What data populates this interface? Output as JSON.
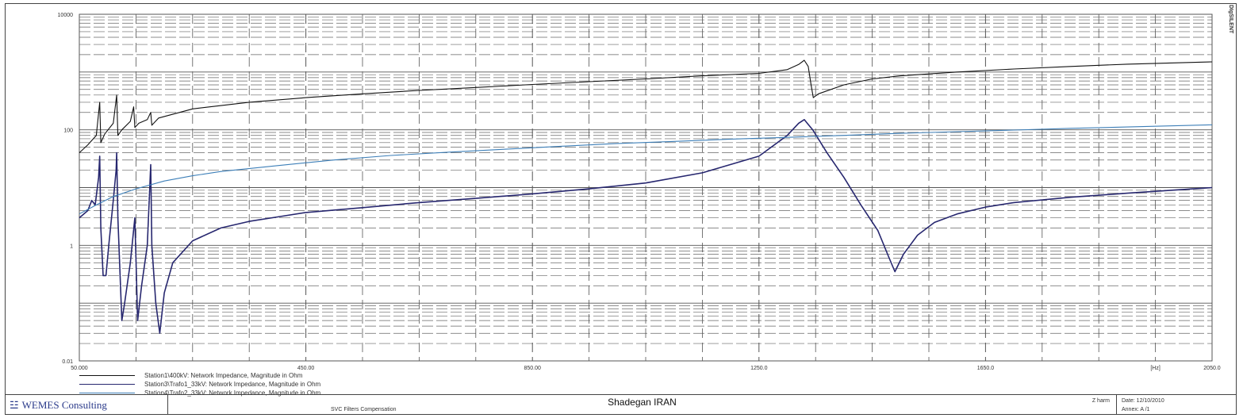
{
  "chart_data": {
    "type": "line",
    "title": "",
    "xlabel": "[Hz]",
    "ylabel": "",
    "xlim": [
      50,
      2050
    ],
    "ylim": [
      0.01,
      10000
    ],
    "y_scale": "log",
    "grid": true,
    "x_tick_labels": [
      {
        "value": 50,
        "label": "50.000"
      },
      {
        "value": 450,
        "label": "450.00"
      },
      {
        "value": 850,
        "label": "850.00"
      },
      {
        "value": 1250,
        "label": "1250.0"
      },
      {
        "value": 1650,
        "label": "1650.0"
      },
      {
        "value": 2050,
        "label": "2050.0"
      }
    ],
    "y_tick_labels": [
      {
        "value": 10000,
        "label": "10000"
      },
      {
        "value": 100,
        "label": "100"
      },
      {
        "value": 1,
        "label": "1"
      },
      {
        "value": 0.01,
        "label": "0.01"
      }
    ],
    "series": [
      {
        "name": "Station1\\400kV: Network Impedance, Magnitude in Ohm",
        "color": "#111111",
        "points": [
          [
            50,
            40
          ],
          [
            65,
            55
          ],
          [
            80,
            80
          ],
          [
            86,
            300
          ],
          [
            88,
            60
          ],
          [
            95,
            85
          ],
          [
            110,
            130
          ],
          [
            116,
            400
          ],
          [
            118,
            80
          ],
          [
            125,
            100
          ],
          [
            140,
            140
          ],
          [
            146,
            250
          ],
          [
            148,
            110
          ],
          [
            155,
            130
          ],
          [
            170,
            150
          ],
          [
            176,
            200
          ],
          [
            178,
            120
          ],
          [
            190,
            160
          ],
          [
            250,
            230
          ],
          [
            350,
            300
          ],
          [
            450,
            360
          ],
          [
            550,
            420
          ],
          [
            650,
            480
          ],
          [
            750,
            540
          ],
          [
            850,
            610
          ],
          [
            950,
            680
          ],
          [
            1050,
            760
          ],
          [
            1150,
            860
          ],
          [
            1250,
            950
          ],
          [
            1300,
            1100
          ],
          [
            1320,
            1350
          ],
          [
            1330,
            1600
          ],
          [
            1337,
            1250
          ],
          [
            1342,
            600
          ],
          [
            1346,
            360
          ],
          [
            1355,
            420
          ],
          [
            1400,
            600
          ],
          [
            1450,
            760
          ],
          [
            1500,
            860
          ],
          [
            1600,
            1000
          ],
          [
            1700,
            1130
          ],
          [
            1800,
            1250
          ],
          [
            1900,
            1370
          ],
          [
            2050,
            1500
          ]
        ]
      },
      {
        "name": "Station3\\Trafo1_33kV: Network Impedance, Magnitude in Ohm",
        "color": "#27276f",
        "points": [
          [
            50,
            3
          ],
          [
            65,
            4
          ],
          [
            72,
            6
          ],
          [
            78,
            5
          ],
          [
            84,
            15
          ],
          [
            86,
            35
          ],
          [
            88,
            2
          ],
          [
            92,
            0.3
          ],
          [
            97,
            0.3
          ],
          [
            102,
            1
          ],
          [
            110,
            6
          ],
          [
            115,
            20
          ],
          [
            116,
            40
          ],
          [
            118,
            3
          ],
          [
            125,
            0.05
          ],
          [
            130,
            0.1
          ],
          [
            140,
            0.5
          ],
          [
            148,
            3
          ],
          [
            153,
            0.05
          ],
          [
            160,
            0.2
          ],
          [
            170,
            1
          ],
          [
            176,
            25
          ],
          [
            178,
            1
          ],
          [
            185,
            0.1
          ],
          [
            192,
            0.03
          ],
          [
            200,
            0.15
          ],
          [
            215,
            0.5
          ],
          [
            250,
            1.2
          ],
          [
            300,
            2
          ],
          [
            350,
            2.6
          ],
          [
            400,
            3.1
          ],
          [
            450,
            3.7
          ],
          [
            550,
            4.5
          ],
          [
            650,
            5.5
          ],
          [
            750,
            6.5
          ],
          [
            850,
            7.8
          ],
          [
            950,
            9.5
          ],
          [
            1050,
            12
          ],
          [
            1150,
            18
          ],
          [
            1250,
            35
          ],
          [
            1300,
            80
          ],
          [
            1320,
            130
          ],
          [
            1330,
            150
          ],
          [
            1345,
            100
          ],
          [
            1370,
            40
          ],
          [
            1400,
            15
          ],
          [
            1430,
            5
          ],
          [
            1460,
            1.8
          ],
          [
            1480,
            0.6
          ],
          [
            1490,
            0.35
          ],
          [
            1505,
            0.7
          ],
          [
            1530,
            1.5
          ],
          [
            1560,
            2.5
          ],
          [
            1600,
            3.5
          ],
          [
            1650,
            4.6
          ],
          [
            1700,
            5.5
          ],
          [
            1800,
            6.8
          ],
          [
            1900,
            8
          ],
          [
            2050,
            10
          ]
        ]
      },
      {
        "name": "Station4\\Trafo2_33kV: Network Impedance, Magnitude in Ohm",
        "color": "#3d7fb8",
        "points": [
          [
            50,
            3.5
          ],
          [
            80,
            5
          ],
          [
            110,
            7
          ],
          [
            150,
            9.5
          ],
          [
            200,
            13
          ],
          [
            250,
            16
          ],
          [
            300,
            19
          ],
          [
            400,
            24
          ],
          [
            500,
            30
          ],
          [
            600,
            36
          ],
          [
            700,
            41
          ],
          [
            800,
            46
          ],
          [
            900,
            52
          ],
          [
            1000,
            58
          ],
          [
            1100,
            63
          ],
          [
            1200,
            69
          ],
          [
            1300,
            74
          ],
          [
            1400,
            80
          ],
          [
            1500,
            87
          ],
          [
            1600,
            93
          ],
          [
            1700,
            99
          ],
          [
            1800,
            106
          ],
          [
            1900,
            112
          ],
          [
            2050,
            122
          ]
        ]
      }
    ]
  },
  "legend": {
    "s1": "Station1\\400kV: Network Impedance, Magnitude in Ohm",
    "s2": "Station3\\Trafo1_33kV: Network Impedance, Magnitude in Ohm",
    "s3": "Station4\\Trafo2_33kV: Network Impedance, Magnitude in Ohm"
  },
  "footer": {
    "company": "WEMES Consulting",
    "project": "Shadegan IRAN",
    "subtitle": "SVC Filters Compensation",
    "zharm": "Z harm",
    "date_label": "Date:  12/10/2010",
    "annex_label": "Annex: A /1"
  },
  "side_label": "DIgSILENT"
}
